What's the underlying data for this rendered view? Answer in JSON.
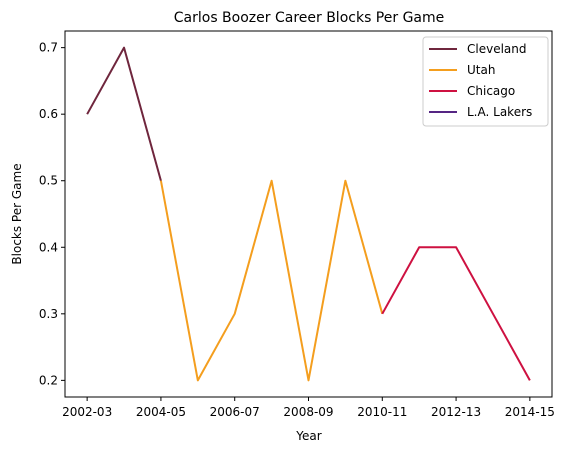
{
  "chart_data": {
    "type": "line",
    "title": "Carlos Boozer Career Blocks Per Game",
    "xlabel": "Year",
    "ylabel": "Blocks Per Game",
    "x_tick_labels": [
      "2002-03",
      "2004-05",
      "2006-07",
      "2008-09",
      "2010-11",
      "2012-13",
      "2014-15"
    ],
    "y_ticks": [
      0.2,
      0.3,
      0.4,
      0.5,
      0.6,
      0.7
    ],
    "ylim": [
      0.175,
      0.725
    ],
    "x_seasons": [
      "2002-03",
      "2003-04",
      "2004-05",
      "2005-06",
      "2006-07",
      "2007-08",
      "2008-09",
      "2009-10",
      "2010-11",
      "2011-12",
      "2012-13",
      "2013-14",
      "2014-15"
    ],
    "series": [
      {
        "name": "Cleveland",
        "color": "#6f263d",
        "x": [
          "2002-03",
          "2003-04",
          "2004-05"
        ],
        "values": [
          0.6,
          0.7,
          0.5
        ]
      },
      {
        "name": "Utah",
        "color": "#f49e1e",
        "x": [
          "2004-05",
          "2005-06",
          "2006-07",
          "2007-08",
          "2008-09",
          "2009-10",
          "2010-11"
        ],
        "values": [
          0.5,
          0.2,
          0.3,
          0.5,
          0.2,
          0.5,
          0.3
        ]
      },
      {
        "name": "Chicago",
        "color": "#ce1141",
        "x": [
          "2010-11",
          "2011-12",
          "2012-13",
          "2013-14",
          "2014-15"
        ],
        "values": [
          0.3,
          0.4,
          0.4,
          0.3,
          0.2
        ]
      },
      {
        "name": "L.A. Lakers",
        "color": "#552583",
        "x": [],
        "values": []
      }
    ],
    "legend_position": "top-right",
    "grid": false
  }
}
